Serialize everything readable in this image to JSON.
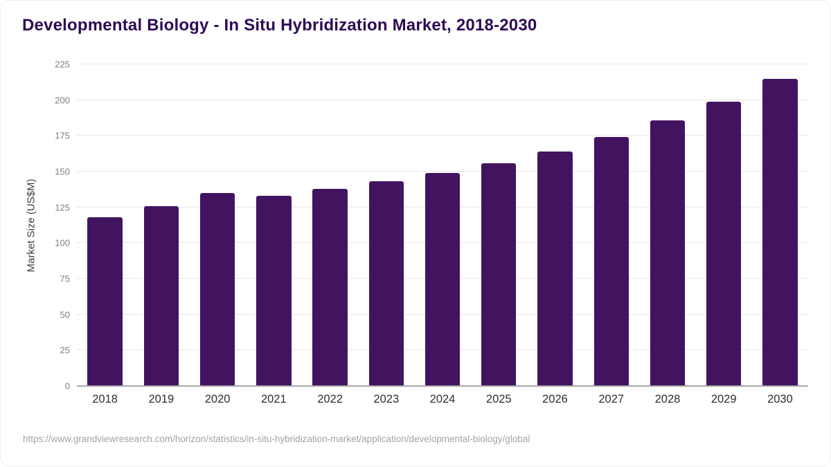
{
  "chart_data": {
    "type": "bar",
    "title": "Developmental Biology - In Situ Hybridization Market, 2018-2030",
    "ylabel": "Market Size (US$M)",
    "xlabel": "",
    "categories": [
      "2018",
      "2019",
      "2020",
      "2021",
      "2022",
      "2023",
      "2024",
      "2025",
      "2026",
      "2027",
      "2028",
      "2029",
      "2030"
    ],
    "values": [
      118,
      126,
      135,
      133,
      138,
      143,
      149,
      156,
      164,
      174,
      186,
      199,
      215
    ],
    "ylim": [
      0,
      225
    ],
    "yticks": [
      0,
      25,
      50,
      75,
      100,
      125,
      150,
      175,
      200,
      225
    ],
    "grid": "horizontal",
    "legend": "none"
  },
  "colors": {
    "bar": "#42145f",
    "title": "#2d0a54",
    "gridline": "#e7e7e7",
    "axis_line": "#a9a9a9",
    "ytick_label": "#7d7d7d",
    "xtick_label": "#2e2e2e",
    "source_text": "#a3a3a3"
  },
  "footer": {
    "source_url": "https://www.grandviewresearch.com/horizon/statistics/in-situ-hybridization-market/application/developmental-biology/global"
  }
}
